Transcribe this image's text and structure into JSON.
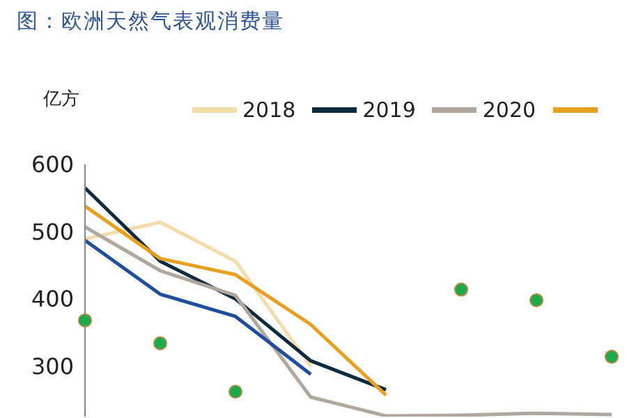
{
  "chart_data": {
    "type": "line",
    "title": "图：欧洲天然气表观消费量",
    "ylabel": "亿方",
    "categories": [
      null,
      null,
      null,
      null,
      null,
      null,
      null,
      null
    ],
    "series": [
      {
        "name": "2018",
        "color": "#f2dcaa",
        "values": [
          489,
          514,
          456,
          300,
          null,
          null,
          null,
          null
        ]
      },
      {
        "name": "2019",
        "color": "#0d2b3e",
        "values": [
          565,
          456,
          400,
          308,
          265,
          null,
          null,
          null
        ]
      },
      {
        "name": "2020",
        "color": "#b0a89e",
        "values": [
          507,
          442,
          405,
          254,
          226,
          227,
          230,
          228
        ]
      },
      {
        "color": "#e8a020",
        "values": [
          538,
          460,
          436,
          362,
          257,
          null,
          null,
          null
        ]
      },
      {
        "color": "#1f4e9c",
        "values": [
          487,
          407,
          374,
          288,
          null,
          null,
          null,
          null
        ]
      },
      {
        "type": "scatter",
        "marker": "circle",
        "color": "#1aab4b",
        "values": [
          368,
          334,
          262,
          null,
          null,
          414,
          398,
          314
        ]
      }
    ],
    "ylim": [
      225,
      600
    ],
    "yticks": [
      300,
      400,
      500,
      600
    ],
    "tick_labels": "y",
    "grid": false,
    "legend": "top",
    "line_style": "solid"
  }
}
